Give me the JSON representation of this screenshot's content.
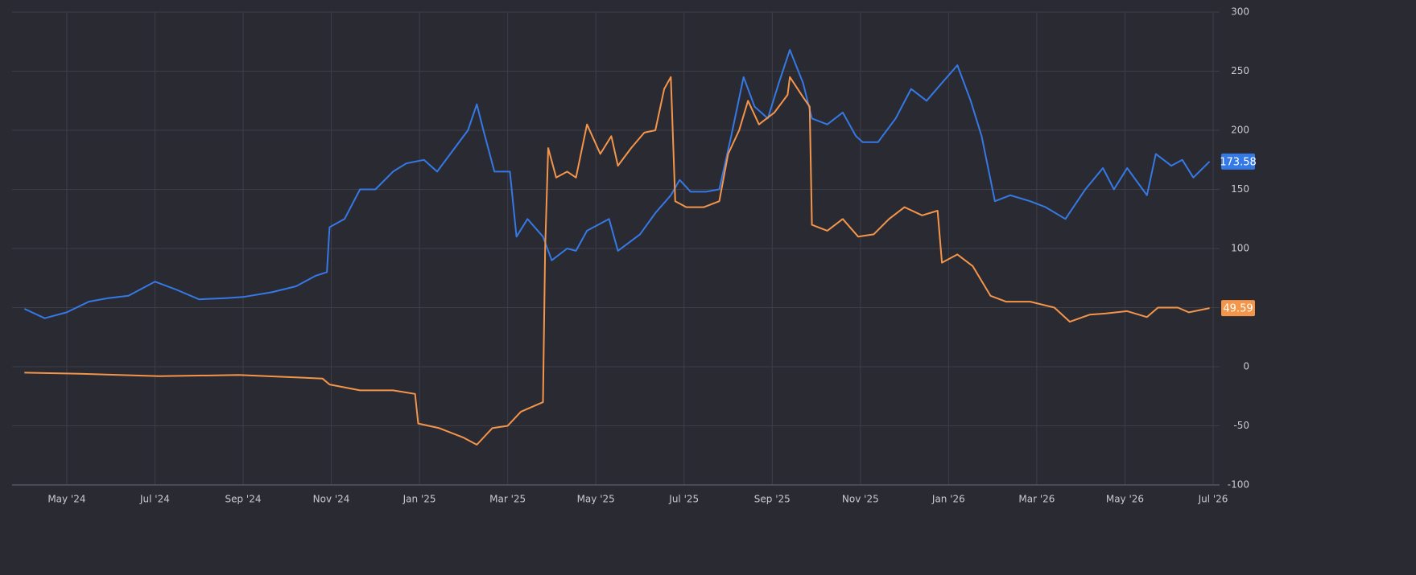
{
  "chart_data": {
    "type": "line",
    "xlim": [
      -1.24,
      26
    ],
    "xticks": [
      {
        "value": 0,
        "label": "May '24"
      },
      {
        "value": 2,
        "label": "Jul '24"
      },
      {
        "value": 4,
        "label": "Sep '24"
      },
      {
        "value": 6,
        "label": "Nov '24"
      },
      {
        "value": 8,
        "label": "Jan '25"
      },
      {
        "value": 10,
        "label": "Mar '25"
      },
      {
        "value": 12,
        "label": "May '25"
      },
      {
        "value": 14,
        "label": "Jul '25"
      },
      {
        "value": 16,
        "label": "Sep '25"
      },
      {
        "value": 18,
        "label": "Nov '25"
      },
      {
        "value": 20,
        "label": "Jan '26"
      },
      {
        "value": 22,
        "label": "Mar '26"
      },
      {
        "value": 24,
        "label": "May '26"
      },
      {
        "value": 26,
        "label": "Jul '26"
      }
    ],
    "ylim": [
      -100,
      300
    ],
    "yticks": [
      -100,
      -50,
      0,
      50,
      100,
      150,
      200,
      250,
      300
    ],
    "grid": true,
    "series": [
      {
        "color": "#3579e6",
        "x": [
          -0.96,
          -0.5,
          0,
          0.5,
          0.94,
          1.4,
          2,
          2.5,
          3,
          3.6,
          4,
          4.65,
          5.2,
          5.65,
          5.9,
          5.96,
          6.3,
          6.65,
          7,
          7.4,
          7.7,
          8.1,
          8.4,
          8.7,
          9.1,
          9.3,
          9.45,
          9.7,
          10.05,
          10.2,
          10.45,
          10.8,
          11,
          11.35,
          11.55,
          11.8,
          12.3,
          12.5,
          13,
          13.35,
          13.7,
          13.9,
          14.15,
          14.5,
          14.8,
          15.07,
          15.35,
          15.6,
          15.9,
          16.15,
          16.4,
          16.7,
          16.9,
          17.25,
          17.6,
          17.9,
          18.05,
          18.4,
          18.8,
          19.15,
          19.5,
          19.85,
          20.2,
          20.5,
          20.75,
          21.05,
          21.4,
          21.85,
          22.2,
          22.65,
          23.1,
          23.5,
          23.75,
          24.05,
          24.5,
          24.7,
          25.05,
          25.3,
          25.55,
          25.92
        ],
        "values": [
          49,
          41,
          46,
          55,
          58,
          60,
          72,
          65,
          57,
          58,
          59,
          63,
          68,
          77,
          80,
          118,
          125,
          150,
          150,
          165,
          172,
          175,
          165,
          180,
          200,
          222,
          200,
          165,
          165,
          110,
          125,
          110,
          90,
          100,
          98,
          115,
          125,
          98,
          112,
          130,
          145,
          158,
          148,
          148,
          150,
          195,
          245,
          220,
          210,
          240,
          268,
          240,
          210,
          205,
          215,
          195,
          190,
          190,
          210,
          235,
          225,
          240,
          255,
          225,
          195,
          140,
          145,
          140,
          135,
          125,
          150,
          168,
          150,
          168,
          145,
          180,
          170,
          175,
          160,
          173.58
        ]
      },
      {
        "color": "#f5954a",
        "x": [
          -0.96,
          0.3,
          2.1,
          3.9,
          5.8,
          5.96,
          6.65,
          7.4,
          7.9,
          7.97,
          8.45,
          9,
          9.3,
          9.65,
          10,
          10.3,
          10.8,
          10.85,
          10.92,
          11.1,
          11.35,
          11.55,
          11.8,
          12.1,
          12.35,
          12.5,
          12.8,
          13.1,
          13.35,
          13.55,
          13.7,
          13.8,
          14.05,
          14.45,
          14.8,
          15,
          15.25,
          15.45,
          15.7,
          16.05,
          16.35,
          16.4,
          16.7,
          16.85,
          16.9,
          17.25,
          17.6,
          17.95,
          18.3,
          18.65,
          19,
          19.4,
          19.75,
          19.85,
          20.2,
          20.55,
          20.95,
          21.3,
          21.85,
          22.4,
          22.75,
          23.2,
          23.55,
          24.05,
          24.5,
          24.75,
          25.2,
          25.45,
          25.92
        ],
        "values": [
          -5,
          -6,
          -8,
          -7,
          -10,
          -15,
          -20,
          -20,
          -23,
          -48,
          -52,
          -60,
          -66,
          -52,
          -50,
          -38,
          -30,
          100,
          185,
          160,
          165,
          160,
          205,
          180,
          195,
          170,
          185,
          198,
          200,
          235,
          245,
          140,
          135,
          135,
          140,
          180,
          200,
          225,
          205,
          215,
          230,
          245,
          228,
          220,
          120,
          115,
          125,
          110,
          112,
          125,
          135,
          128,
          132,
          88,
          95,
          85,
          60,
          55,
          55,
          50,
          38,
          44,
          45,
          47,
          42,
          50,
          50,
          46,
          49.59
        ]
      }
    ]
  }
}
